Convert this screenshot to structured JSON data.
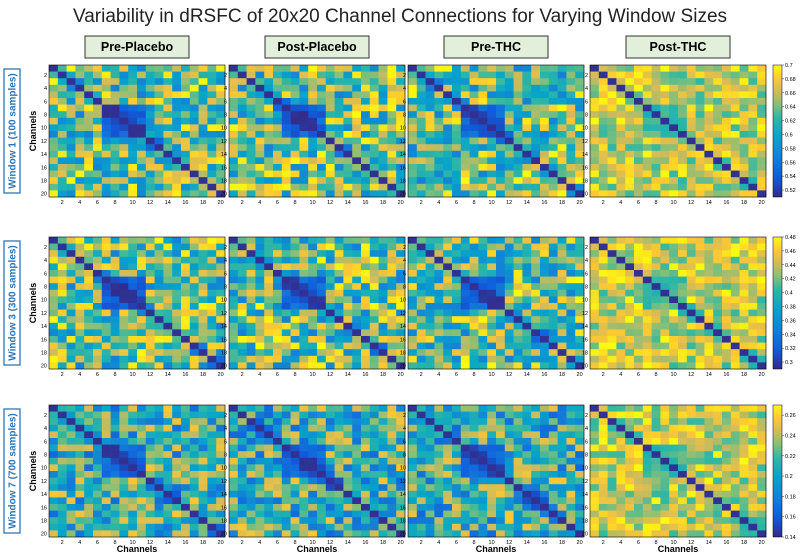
{
  "chart_data": {
    "type": "heatmap",
    "title": "Variability in dRSFC of 20x20 Channel Connections for Varying Window Sizes",
    "n_channels": 20,
    "columns": [
      "Pre-Placebo",
      "Post-Placebo",
      "Pre-THC",
      "Post-THC"
    ],
    "xlabel": "Channels",
    "ylabel": "Channels",
    "axis_ticks": [
      "2",
      "4",
      "6",
      "8",
      "10",
      "12",
      "14",
      "16",
      "18",
      "20"
    ],
    "rows": [
      {
        "label": "Window 1 (100 samples)",
        "colorbar": {
          "ticks": [
            "0.7",
            "0.68",
            "0.66",
            "0.64",
            "0.62",
            "0.6",
            "0.58",
            "0.56",
            "0.54",
            "0.52"
          ],
          "range": [
            0.51,
            0.7
          ]
        }
      },
      {
        "label": "Window 3 (300 samples)",
        "colorbar": {
          "ticks": [
            "0.48",
            "0.46",
            "0.44",
            "0.42",
            "0.4",
            "0.38",
            "0.36",
            "0.34",
            "0.32",
            "0.3"
          ],
          "range": [
            0.29,
            0.48
          ]
        }
      },
      {
        "label": "Window 7 (700 samples)",
        "colorbar": {
          "ticks": [
            "0.26",
            "0.24",
            "0.22",
            "0.2",
            "0.18",
            "0.16",
            "0.14"
          ],
          "range": [
            0.14,
            0.27
          ]
        }
      }
    ],
    "colormap": "parula",
    "diagonal": "minimum value (dark blue)",
    "low_variability_cluster": "channels 8-10"
  }
}
